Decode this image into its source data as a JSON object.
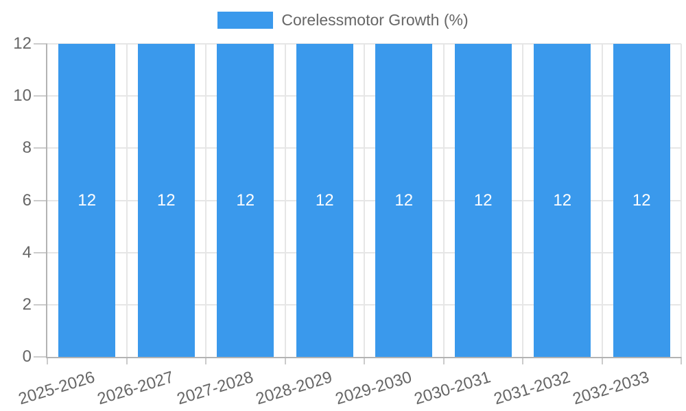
{
  "legend": {
    "items": [
      {
        "label": "Corelessmotor Growth (%)",
        "color": "#3A99EC"
      }
    ]
  },
  "colors": {
    "bar": "#3A99EC",
    "grid": "#E6E6E6",
    "axis": "#B3B3B3",
    "tick_mark": "#CBCBCB",
    "text": "#666666",
    "bar_label": "#FFFFFF",
    "background": "#FFFFFF"
  },
  "chart_data": {
    "type": "bar",
    "title": "",
    "categories": [
      "2025-2026",
      "2026-2027",
      "2027-2028",
      "2028-2029",
      "2029-2030",
      "2030-2031",
      "2031-2032",
      "2032-2033"
    ],
    "series": [
      {
        "name": "Corelessmotor Growth (%)",
        "color": "#3A99EC",
        "values": [
          12,
          12,
          12,
          12,
          12,
          12,
          12,
          12
        ]
      }
    ],
    "data_labels": [
      "12",
      "12",
      "12",
      "12",
      "12",
      "12",
      "12",
      "12"
    ],
    "data_labels_position": "center",
    "xlabel": "",
    "ylabel": "",
    "yticks": [
      0,
      2,
      4,
      6,
      8,
      10,
      12
    ],
    "ylim": [
      0,
      12
    ],
    "grid": true,
    "legend_position": "top",
    "x_tick_rotation_deg": -17
  }
}
